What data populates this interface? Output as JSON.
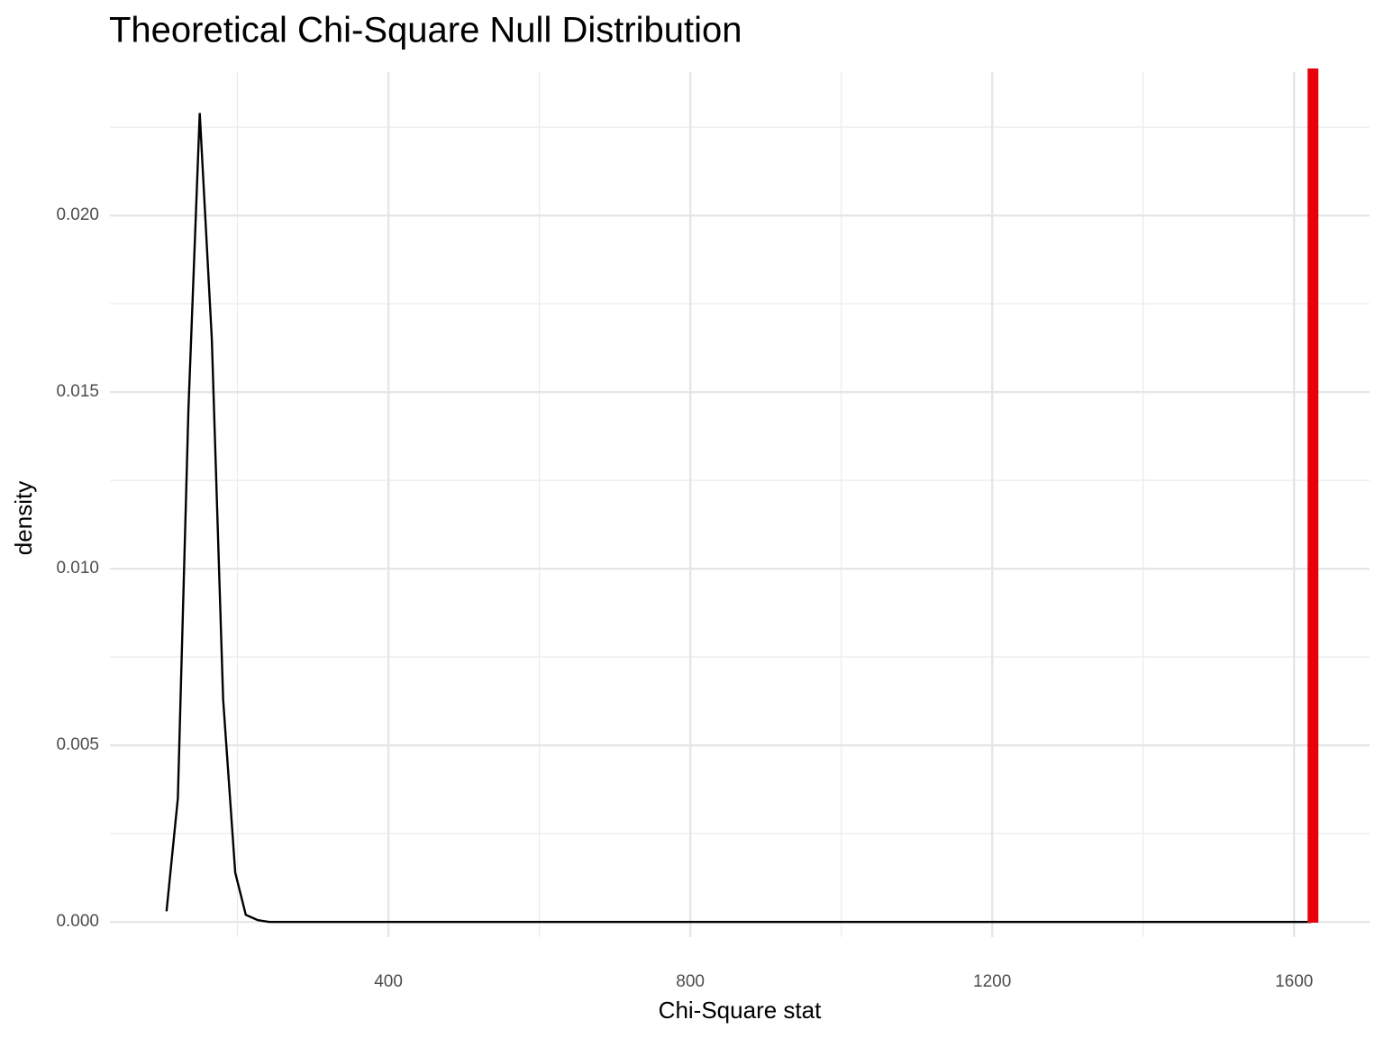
{
  "chart_data": {
    "type": "line",
    "title": "Theoretical Chi-Square Null Distribution",
    "x_label": "Chi-Square stat",
    "y_label": "density",
    "x": [
      106,
      121,
      135,
      150,
      166,
      181,
      197,
      211,
      227,
      242,
      400,
      800,
      1200,
      1623
    ],
    "series": [
      {
        "color": "#000000",
        "values": [
          0.0003,
          0.0035,
          0.0145,
          0.0229,
          0.0165,
          0.0063,
          0.0014,
          0.0002,
          5e-05,
          0,
          0,
          0,
          0,
          0
        ]
      }
    ],
    "vline": {
      "x": 1625,
      "color": "#e8000b"
    },
    "xlim": [
      31,
      1700
    ],
    "ylim": [
      -0.00043,
      0.02406
    ],
    "xticks": [
      400,
      800,
      1200,
      1600
    ],
    "yticks": [
      {
        "value": 0,
        "label": "0.000"
      },
      {
        "value": 0.005,
        "label": "0.005"
      },
      {
        "value": 0.01,
        "label": "0.010"
      },
      {
        "value": 0.015,
        "label": "0.015"
      },
      {
        "value": 0.02,
        "label": "0.020"
      }
    ],
    "x_minor_ticks": [
      200,
      600,
      1000,
      1400
    ],
    "y_minor_ticks": [
      0.0025,
      0.0075,
      0.0125,
      0.0175,
      0.0225
    ],
    "grid": true
  }
}
